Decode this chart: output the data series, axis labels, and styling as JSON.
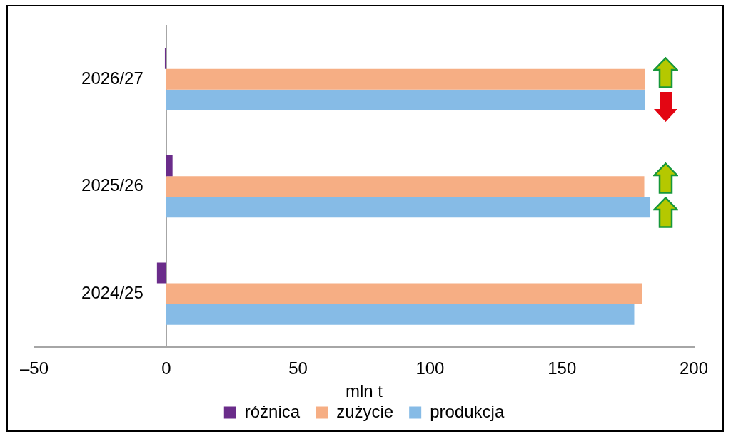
{
  "chart_data": {
    "type": "bar",
    "orientation": "horizontal",
    "categories": [
      "2026/27",
      "2025/26",
      "2024/25"
    ],
    "series": [
      {
        "name": "różnica",
        "color": "#6a2c8a",
        "values": [
          -0.5,
          2.4,
          -3.5
        ]
      },
      {
        "name": "zużycie",
        "color": "#f6ae84",
        "values": [
          181.6,
          181.2,
          180.4
        ]
      },
      {
        "name": "produkcja",
        "color": "#86bbe6",
        "values": [
          181.4,
          183.5,
          177.4
        ]
      }
    ],
    "xlabel": "mln t",
    "xlim": [
      -50,
      200
    ],
    "xticks": [
      {
        "value": -50,
        "label": "–50"
      },
      0,
      50,
      100,
      150,
      200
    ],
    "legend": "bottom"
  }
}
